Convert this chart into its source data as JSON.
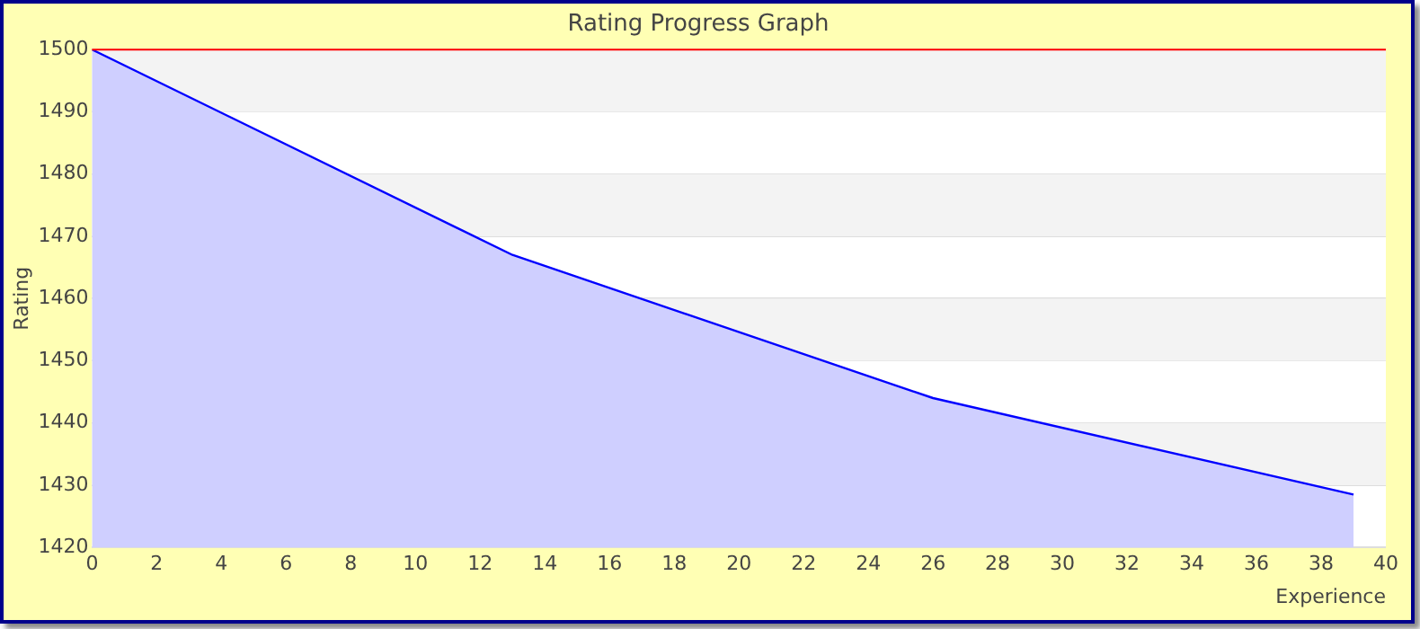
{
  "chart_data": {
    "type": "area",
    "title": "Rating Progress Graph",
    "xlabel": "Experience",
    "ylabel": "Rating",
    "x": [
      0,
      13,
      26,
      39
    ],
    "series": [
      {
        "color": "#0000ff",
        "values": [
          1500,
          1467,
          1444,
          1428.5
        ]
      }
    ],
    "xlim": [
      0,
      40
    ],
    "xticks": [
      0,
      2,
      4,
      6,
      8,
      10,
      12,
      14,
      16,
      18,
      20,
      22,
      24,
      26,
      28,
      30,
      32,
      34,
      36,
      38,
      40
    ],
    "ylim": [
      1420,
      1500
    ],
    "yticks": [
      1420,
      1430,
      1440,
      1450,
      1460,
      1470,
      1480,
      1490,
      1500
    ],
    "grid": "y",
    "legend": false,
    "ref_lines": [
      {
        "axis": "y",
        "value": 1500,
        "color": "#ff0000"
      }
    ]
  }
}
